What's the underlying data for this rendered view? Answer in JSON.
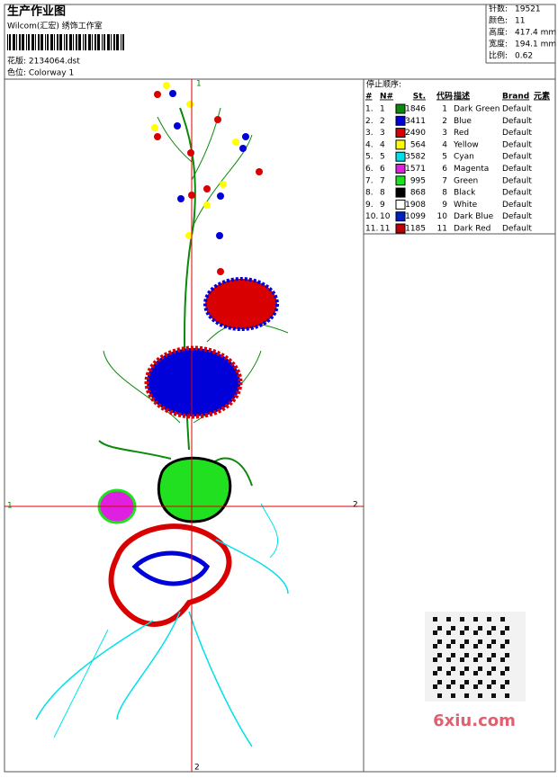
{
  "header": {
    "title": "生产作业图",
    "studio": "Wilcom(汇宏) 绣饰工作室",
    "pattern": "花版: 2134064.dst",
    "colorway": "色位: Colorway 1"
  },
  "stats": [
    {
      "label": "针数:",
      "value": "19521"
    },
    {
      "label": "颜色:",
      "value": "11"
    },
    {
      "label": "高度:",
      "value": "417.4 mm"
    },
    {
      "label": "宽度:",
      "value": "194.1 mm"
    },
    {
      "label": "比例:",
      "value": "0.62"
    }
  ],
  "table": {
    "title": "停止顺序:",
    "columns": [
      "#",
      "N#",
      "St.",
      "代码",
      "描述",
      "Brand",
      "元素"
    ],
    "rows": [
      {
        "index": "1.",
        "n": "1",
        "color": "#0a8a0a",
        "st": 1846,
        "code": "1",
        "desc": "Dark Green",
        "brand": "Default"
      },
      {
        "index": "2.",
        "n": "2",
        "color": "#0000d8",
        "st": 3411,
        "code": "2",
        "desc": "Blue",
        "brand": "Default"
      },
      {
        "index": "3.",
        "n": "3",
        "color": "#d80000",
        "st": 2490,
        "code": "3",
        "desc": "Red",
        "brand": "Default"
      },
      {
        "index": "4.",
        "n": "4",
        "color": "#ffff00",
        "st": 564,
        "code": "4",
        "desc": "Yellow",
        "brand": "Default"
      },
      {
        "index": "5.",
        "n": "5",
        "color": "#00e0e8",
        "st": 3582,
        "code": "5",
        "desc": "Cyan",
        "brand": "Default"
      },
      {
        "index": "6.",
        "n": "6",
        "color": "#e020e0",
        "st": 1571,
        "code": "6",
        "desc": "Magenta",
        "brand": "Default"
      },
      {
        "index": "7.",
        "n": "7",
        "color": "#20e020",
        "st": 995,
        "code": "7",
        "desc": "Green",
        "brand": "Default"
      },
      {
        "index": "8.",
        "n": "8",
        "color": "#000000",
        "st": 868,
        "code": "8",
        "desc": "Black",
        "brand": "Default"
      },
      {
        "index": "9.",
        "n": "9",
        "color": "#ffffff",
        "st": 1908,
        "code": "9",
        "desc": "White",
        "brand": "Default"
      },
      {
        "index": "10.",
        "n": "10",
        "color": "#0020c0",
        "st": 1099,
        "code": "10",
        "desc": "Dark Blue",
        "brand": "Default"
      },
      {
        "index": "11.",
        "n": "11",
        "color": "#c00000",
        "st": 1185,
        "code": "11",
        "desc": "Dark Red",
        "brand": "Default"
      }
    ]
  },
  "axis_labels": {
    "top": "1",
    "bottom": "2",
    "left": "1",
    "right": "2"
  },
  "watermark": "6xiu.com"
}
